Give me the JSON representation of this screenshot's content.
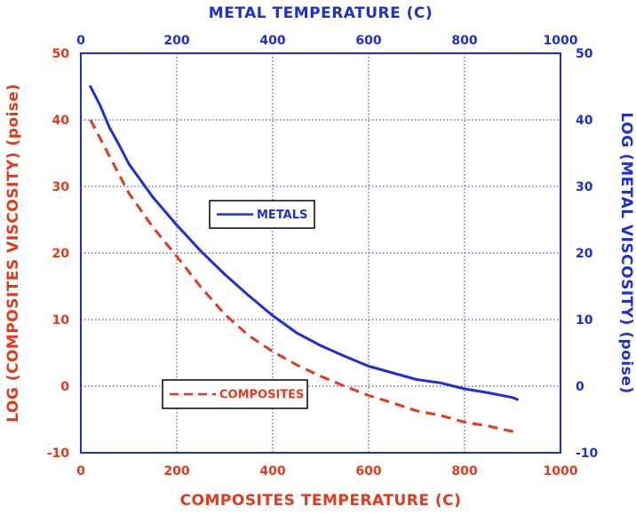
{
  "chart_data": {
    "type": "line",
    "title": "",
    "x_bottom": {
      "label": "COMPOSITES TEMPERATURE (C)",
      "range": [
        0,
        1000
      ],
      "ticks": [
        "0",
        "200",
        "400",
        "600",
        "800",
        "1000"
      ]
    },
    "x_top": {
      "label": "METAL TEMPERATURE (C)",
      "range": [
        0,
        1000
      ],
      "ticks": [
        "0",
        "200",
        "400",
        "600",
        "800",
        "1000"
      ]
    },
    "y_left": {
      "label": "LOG (COMPOSITES VISCOSITY) (poise)",
      "range": [
        -10,
        50
      ],
      "ticks": [
        "-10",
        "0",
        "10",
        "20",
        "30",
        "40",
        "50"
      ]
    },
    "y_right": {
      "label": "LOG (METAL VISCOSITY) (poise)",
      "range": [
        -10,
        50
      ],
      "ticks": [
        "-10",
        "0",
        "10",
        "20",
        "30",
        "40",
        "50"
      ]
    },
    "grid": true,
    "series": [
      {
        "name": "METALS",
        "axes": "top-right",
        "style": "solid",
        "color": "#1f2fd6",
        "x": [
          20,
          40,
          60,
          80,
          100,
          150,
          200,
          250,
          300,
          350,
          400,
          450,
          500,
          550,
          600,
          650,
          700,
          750,
          800,
          850,
          900,
          910
        ],
        "y": [
          45,
          42.2,
          38.8,
          36.2,
          33.4,
          28.4,
          24.2,
          20.3,
          16.8,
          13.6,
          10.6,
          8.0,
          6.1,
          4.5,
          3.0,
          2.0,
          1.0,
          0.5,
          -0.4,
          -1.0,
          -1.7,
          -2.0
        ]
      },
      {
        "name": "COMPOSITES",
        "axes": "bottom-left",
        "style": "dashed",
        "color": "#e23a1a",
        "x": [
          20,
          60,
          100,
          150,
          200,
          250,
          300,
          350,
          400,
          450,
          500,
          550,
          600,
          650,
          700,
          750,
          800,
          850,
          900,
          910
        ],
        "y": [
          40,
          34.5,
          29.0,
          23.9,
          19.5,
          14.9,
          10.8,
          7.6,
          5.2,
          3.2,
          1.5,
          0.0,
          -1.4,
          -2.5,
          -3.7,
          -4.4,
          -5.4,
          -6.0,
          -6.8,
          -7.0
        ]
      }
    ],
    "legend": [
      {
        "label": "METALS",
        "style": "solid",
        "color": "#1f2fd6"
      },
      {
        "label": "COMPOSITES",
        "style": "dashed",
        "color": "#e23a1a"
      }
    ],
    "colors": {
      "metal_axis": "#1f2fd6",
      "composite_axis": "#e23a1a",
      "grid": "#1f2fd6",
      "frame": "#1f2fd6"
    }
  }
}
